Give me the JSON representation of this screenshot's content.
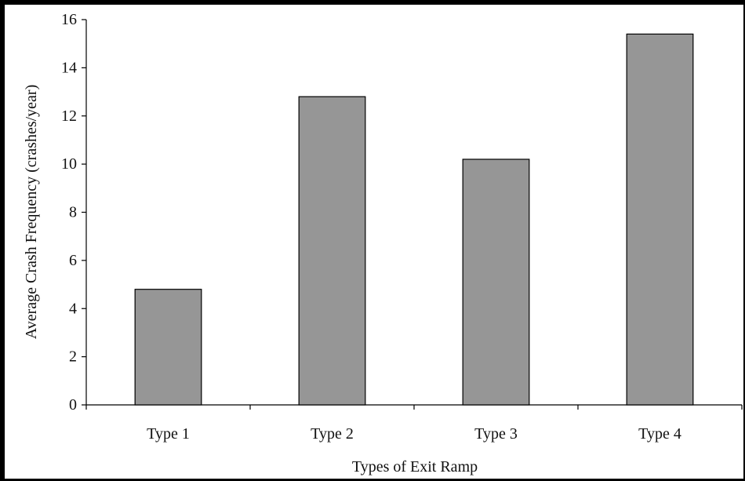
{
  "chart_data": {
    "type": "bar",
    "title": "",
    "xlabel": "Types of Exit Ramp",
    "ylabel": "Average Crash Frequency (crashes/year)",
    "categories": [
      "Type 1",
      "Type 2",
      "Type 3",
      "Type 4"
    ],
    "values": [
      4.8,
      12.8,
      10.2,
      15.4
    ],
    "ylim": [
      0,
      16
    ],
    "yticks": [
      0,
      2,
      4,
      6,
      8,
      10,
      12,
      14,
      16
    ],
    "ytick_labels": [
      "0",
      "2",
      "4",
      "6",
      "8",
      "10",
      "12",
      "14",
      "16"
    ],
    "grid": false,
    "legend": "none",
    "bar_color": "#969696",
    "bar_edge_color": "#000000"
  }
}
